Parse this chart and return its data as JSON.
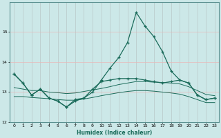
{
  "background_color": "#cce8e8",
  "grid_color_v": "#b8c8c8",
  "grid_color_h": "#e8b8b8",
  "line_color": "#1a6b5a",
  "xlabel": "Humidex (Indice chaleur)",
  "x": [
    0,
    1,
    2,
    3,
    4,
    5,
    6,
    7,
    8,
    9,
    10,
    11,
    12,
    13,
    14,
    15,
    16,
    17,
    18,
    19,
    20,
    21,
    22,
    23
  ],
  "line1": [
    13.6,
    13.3,
    12.9,
    13.1,
    12.8,
    12.7,
    12.5,
    12.7,
    12.8,
    13.0,
    13.4,
    13.8,
    14.15,
    14.65,
    15.65,
    15.2,
    14.85,
    14.35,
    13.7,
    13.4,
    13.3,
    12.9,
    12.75,
    12.8
  ],
  "line2": [
    13.6,
    13.3,
    12.9,
    13.1,
    12.8,
    12.7,
    12.5,
    12.75,
    12.8,
    13.1,
    13.35,
    13.4,
    13.45,
    13.45,
    13.45,
    13.4,
    13.35,
    13.3,
    13.35,
    13.4,
    13.3,
    12.9,
    12.75,
    12.8
  ],
  "line3": [
    13.15,
    13.1,
    13.05,
    13.05,
    13.0,
    12.98,
    12.95,
    12.97,
    13.02,
    13.07,
    13.12,
    13.18,
    13.25,
    13.3,
    13.35,
    13.35,
    13.33,
    13.32,
    13.3,
    13.27,
    13.18,
    13.05,
    12.92,
    12.88
  ],
  "line4": [
    12.85,
    12.85,
    12.82,
    12.8,
    12.78,
    12.75,
    12.73,
    12.73,
    12.77,
    12.82,
    12.88,
    12.93,
    12.98,
    13.02,
    13.05,
    13.05,
    13.03,
    13.0,
    12.97,
    12.93,
    12.85,
    12.75,
    12.65,
    12.65
  ],
  "ylim": [
    12,
    16
  ],
  "yticks": [
    12,
    13,
    14,
    15
  ],
  "xticks": [
    0,
    1,
    2,
    3,
    4,
    5,
    6,
    7,
    8,
    9,
    10,
    11,
    12,
    13,
    14,
    15,
    16,
    17,
    18,
    19,
    20,
    21,
    22,
    23
  ],
  "xlim": [
    -0.5,
    23.5
  ]
}
